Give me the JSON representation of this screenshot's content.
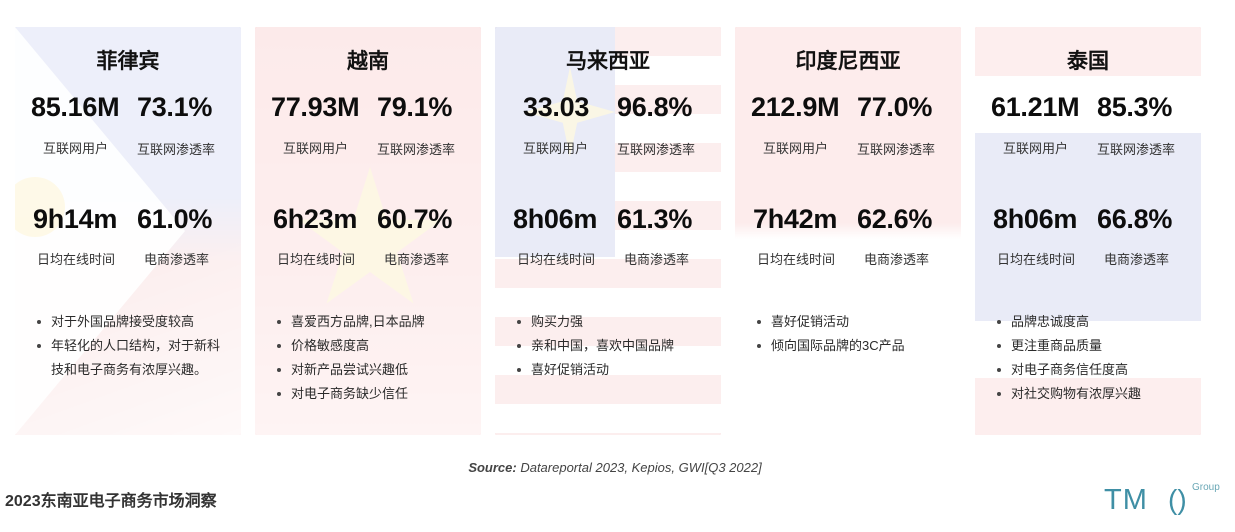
{
  "countries": [
    {
      "name": "菲律宾",
      "internet_users": "85.16M",
      "internet_users_label": "互联网用户",
      "internet_penetration": "73.1%",
      "internet_penetration_label": "互联网渗透率",
      "daily_online_time": "9h14m",
      "daily_online_time_label": "日均在线时间",
      "ecommerce_penetration": "61.0%",
      "ecommerce_penetration_label": "电商渗透率",
      "notes": [
        "对于外国品牌接受度较高",
        "年轻化的人口结构，对于新科技和电子商务有浓厚兴趣。"
      ]
    },
    {
      "name": "越南",
      "internet_users": "77.93M",
      "internet_users_label": "互联网用户",
      "internet_penetration": "79.1%",
      "internet_penetration_label": "互联网渗透率",
      "daily_online_time": "6h23m",
      "daily_online_time_label": "日均在线时间",
      "ecommerce_penetration": "60.7%",
      "ecommerce_penetration_label": "电商渗透率",
      "notes": [
        "喜爱西方品牌,日本品牌",
        "价格敏感度高",
        "对新产品尝试兴趣低",
        "对电子商务缺少信任"
      ]
    },
    {
      "name": "马来西亚",
      "internet_users": "33.03",
      "internet_users_label": "互联网用户",
      "internet_penetration": "96.8%",
      "internet_penetration_label": "互联网渗透率",
      "daily_online_time": "8h06m",
      "daily_online_time_label": "日均在线时间",
      "ecommerce_penetration": "61.3%",
      "ecommerce_penetration_label": "电商渗透率",
      "notes": [
        "购买力强",
        "亲和中国，喜欢中国品牌",
        "喜好促销活动"
      ]
    },
    {
      "name": "印度尼西亚",
      "internet_users": "212.9M",
      "internet_users_label": "互联网用户",
      "internet_penetration": "77.0%",
      "internet_penetration_label": "互联网渗透率",
      "daily_online_time": "7h42m",
      "daily_online_time_label": "日均在线时间",
      "ecommerce_penetration": "62.6%",
      "ecommerce_penetration_label": "电商渗透率",
      "notes": [
        "喜好促销活动",
        "倾向国际品牌的3C产品"
      ]
    },
    {
      "name": "泰国",
      "internet_users": "61.21M",
      "internet_users_label": "互联网用户",
      "internet_penetration": "85.3%",
      "internet_penetration_label": "互联网渗透率",
      "daily_online_time": "8h06m",
      "daily_online_time_label": "日均在线时间",
      "ecommerce_penetration": "66.8%",
      "ecommerce_penetration_label": "电商渗透率",
      "notes": [
        "品牌忠诚度高",
        "更注重商品质量",
        "对电子商务信任度高",
        "对社交购物有浓厚兴趣"
      ]
    }
  ],
  "source_label": "Source:",
  "source_text": " Datareportal 2023, Kepios, GWI[Q3 2022]",
  "footer_title": "2023东南亚电子商务市场洞察",
  "logo": {
    "mark": "TM",
    "bracket": "()",
    "sub": "Group",
    "color": "#3f8fa5"
  }
}
